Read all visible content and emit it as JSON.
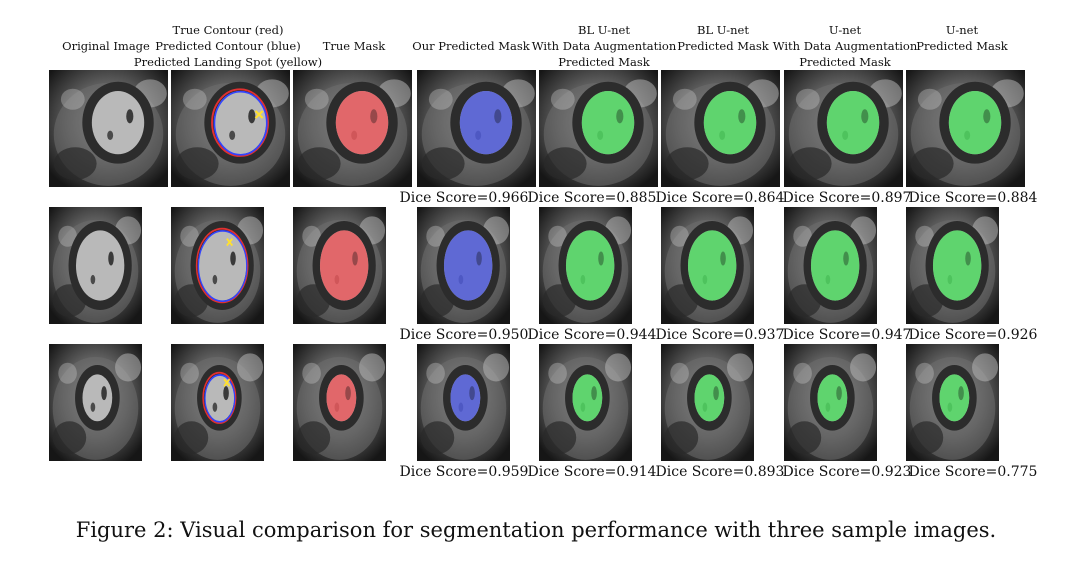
{
  "headers": [
    {
      "lines": [
        "Original Image"
      ]
    },
    {
      "lines": [
        "True Contour (red)",
        "Predicted Contour (blue)",
        "Predicted Landing Spot (yellow)"
      ]
    },
    {
      "lines": [
        "True Mask"
      ]
    },
    {
      "lines": [
        "Our Predicted Mask"
      ]
    },
    {
      "lines": [
        "BL U-net",
        "With Data Augmentation",
        "Predicted Mask"
      ]
    },
    {
      "lines": [
        "BL U-net",
        "Predicted Mask"
      ]
    },
    {
      "lines": [
        "U-net",
        "With Data Augmentation",
        "Predicted Mask"
      ]
    },
    {
      "lines": [
        "U-net",
        "Predicted Mask"
      ]
    }
  ],
  "rows": [
    {
      "dice": [
        "Dice Score=0.966",
        "Dice Score=0.885",
        "Dice Score=0.864",
        "Dice Score=0.897",
        "Dice Score=0.884"
      ]
    },
    {
      "dice": [
        "Dice Score=0.950",
        "Dice Score=0.944",
        "Dice Score=0.937",
        "Dice Score=0.947",
        "Dice Score=0.926"
      ]
    },
    {
      "dice": [
        "Dice Score=0.959",
        "Dice Score=0.914",
        "Dice Score=0.893",
        "Dice Score=0.923",
        "Dice Score=0.775"
      ]
    }
  ],
  "overlay_colors": {
    "true_mask": "#e8585c",
    "our_mask": "#4f5ad8",
    "unet_mask": "#4fd860",
    "true_contour": "#e23030",
    "pred_contour": "#3344ff",
    "landing_spot": "#ffe030"
  },
  "caption": "Figure 2: Visual comparison for segmentation performance with three sample images."
}
